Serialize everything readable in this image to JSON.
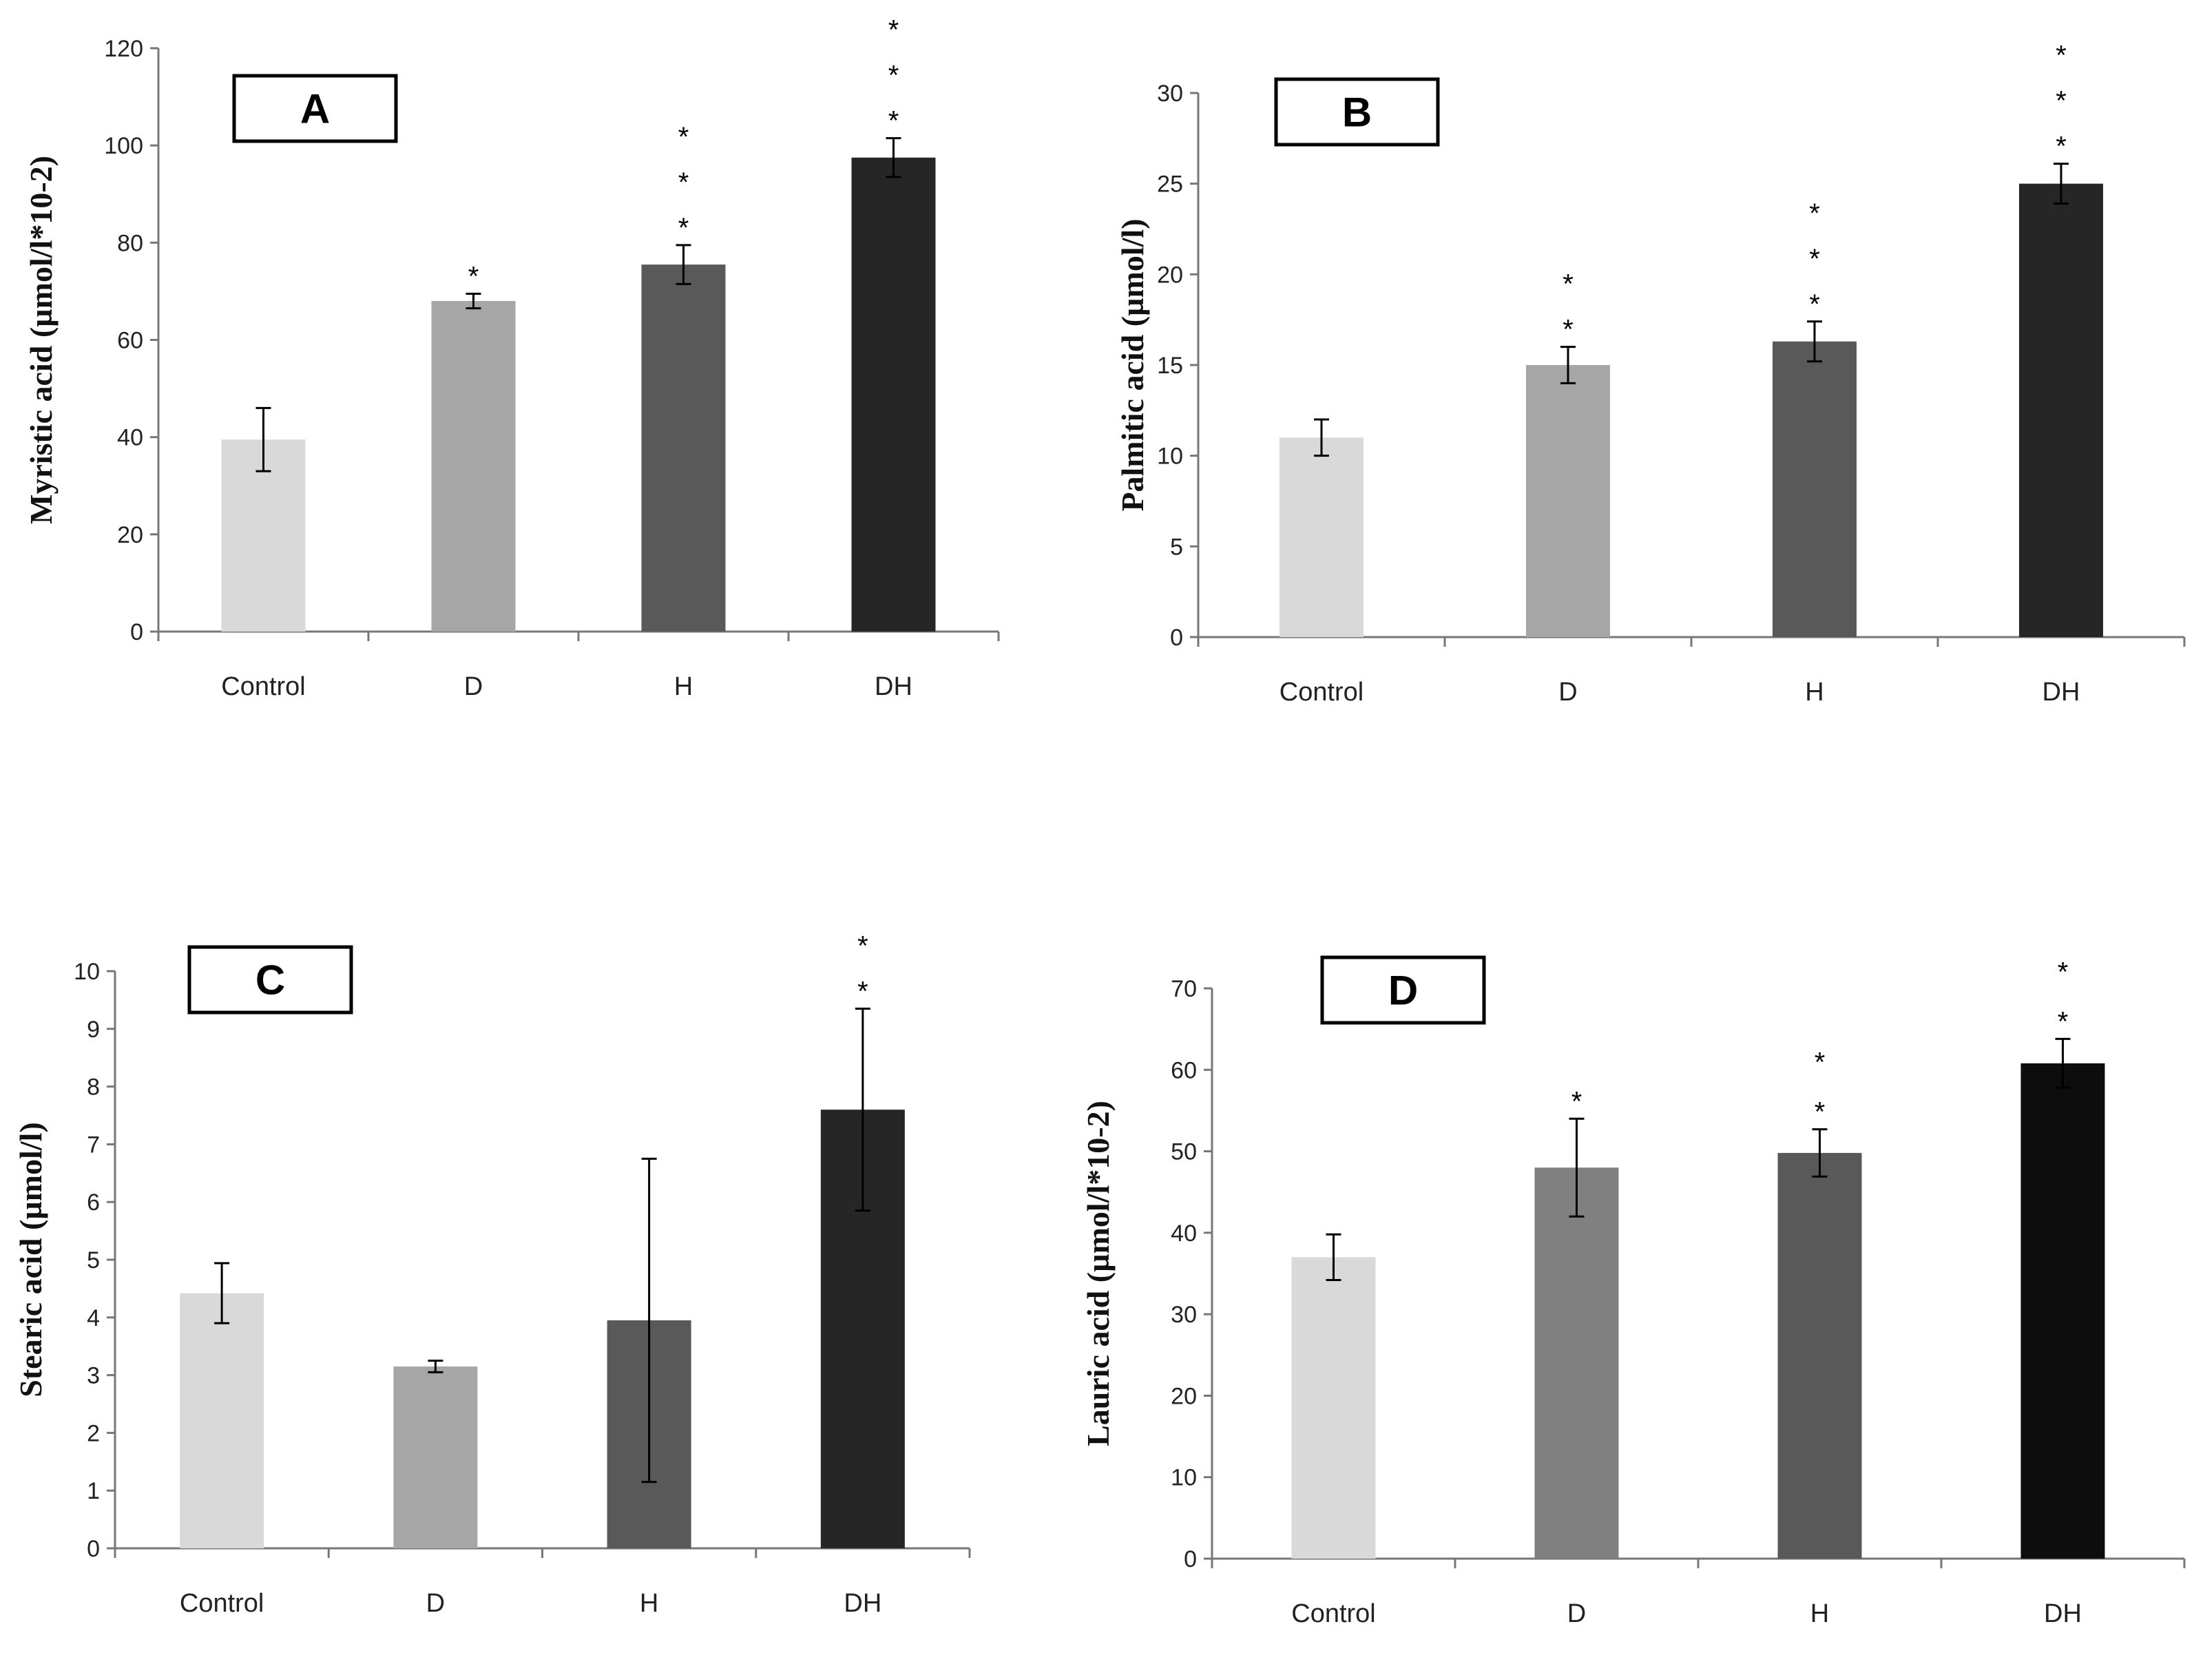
{
  "chart_data": [
    {
      "type": "bar",
      "panel": "A",
      "categories": [
        "Control",
        "D",
        "H",
        "DH"
      ],
      "values": [
        39.5,
        68,
        75.5,
        97.5
      ],
      "errors": [
        6.5,
        1.5,
        4,
        4
      ],
      "significance": [
        "",
        "*",
        "***",
        "***"
      ],
      "colors": [
        "#d9d9d9",
        "#a6a6a6",
        "#595959",
        "#262626"
      ],
      "ylabel": "Myristic acid (µmol/l*10-2)",
      "ylim": [
        0,
        120
      ],
      "yticks": [
        0,
        20,
        40,
        60,
        80,
        100,
        120
      ]
    },
    {
      "type": "bar",
      "panel": "B",
      "categories": [
        "Control",
        "D",
        "H",
        "DH"
      ],
      "values": [
        11,
        15,
        16.3,
        25
      ],
      "errors": [
        1,
        1,
        1.1,
        1.1
      ],
      "significance": [
        "",
        "**",
        "***",
        "***"
      ],
      "colors": [
        "#d9d9d9",
        "#a6a6a6",
        "#595959",
        "#262626"
      ],
      "ylabel": "Palmitic acid (µmol/l)",
      "ylim": [
        0,
        30
      ],
      "yticks": [
        0,
        5,
        10,
        15,
        20,
        25,
        30
      ]
    },
    {
      "type": "bar",
      "panel": "C",
      "categories": [
        "Control",
        "D",
        "H",
        "DH"
      ],
      "values": [
        4.42,
        3.15,
        3.95,
        7.6
      ],
      "errors": [
        0.52,
        0.1,
        2.8,
        1.75
      ],
      "significance": [
        "",
        "",
        "",
        "**"
      ],
      "colors": [
        "#d9d9d9",
        "#a6a6a6",
        "#595959",
        "#262626"
      ],
      "ylabel": "Stearic acid (µmol/l)",
      "ylim": [
        0,
        10
      ],
      "yticks": [
        0,
        1,
        2,
        3,
        4,
        5,
        6,
        7,
        8,
        9,
        10
      ]
    },
    {
      "type": "bar",
      "panel": "D",
      "categories": [
        "Control",
        "D",
        "H",
        "DH"
      ],
      "values": [
        37,
        48,
        49.8,
        60.8
      ],
      "errors": [
        2.8,
        6,
        2.9,
        3
      ],
      "significance": [
        "",
        "*",
        "**",
        "**"
      ],
      "colors": [
        "#d9d9d9",
        "#808080",
        "#595959",
        "#0d0d0d"
      ],
      "ylabel": "Lauric acid (µmol/l*10-2)",
      "ylim": [
        0,
        70
      ],
      "yticks": [
        0,
        10,
        20,
        30,
        40,
        50,
        60,
        70
      ]
    }
  ]
}
